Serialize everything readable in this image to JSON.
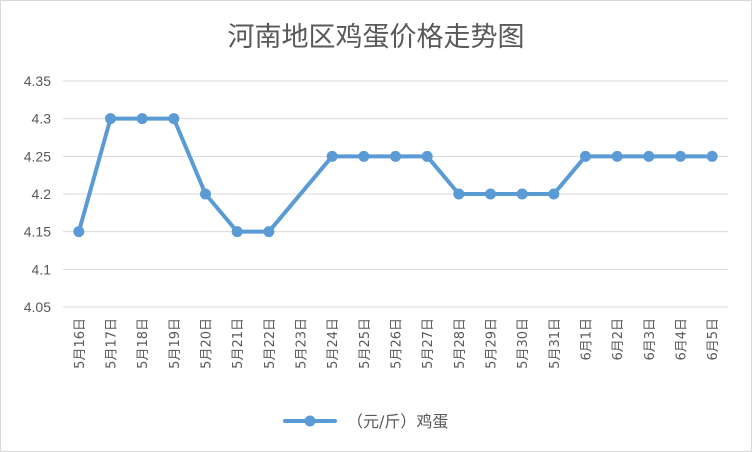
{
  "colors": {
    "series": "#5b9bd5",
    "text": "#595959",
    "grid": "#d9d9d9"
  },
  "chart_data": {
    "type": "line",
    "title": "河南地区鸡蛋价格走势图",
    "xlabel": "",
    "ylabel": "",
    "ylim": [
      4.05,
      4.35
    ],
    "yticks": [
      "4.05",
      "4.1",
      "4.15",
      "4.2",
      "4.25",
      "4.3",
      "4.35"
    ],
    "grid": true,
    "legend_position": "bottom",
    "categories": [
      "5月16日",
      "5月17日",
      "5月18日",
      "5月19日",
      "5月20日",
      "5月21日",
      "5月22日",
      "5月23日",
      "5月24日",
      "5月25日",
      "5月26日",
      "5月27日",
      "5月28日",
      "5月29日",
      "5月30日",
      "5月31日",
      "6月1日",
      "6月2日",
      "6月3日",
      "6月4日",
      "6月5日"
    ],
    "series": [
      {
        "name": "（元/斤）鸡蛋",
        "values": [
          4.15,
          4.3,
          4.3,
          4.3,
          4.2,
          4.15,
          4.15,
          null,
          4.25,
          4.25,
          4.25,
          4.25,
          4.2,
          4.2,
          4.2,
          4.2,
          4.25,
          4.25,
          4.25,
          4.25,
          4.25
        ]
      }
    ]
  }
}
